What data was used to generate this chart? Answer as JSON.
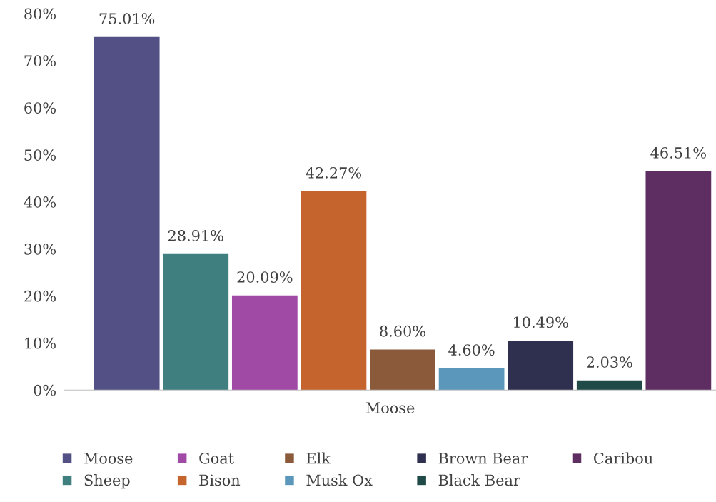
{
  "chart_data": {
    "type": "bar",
    "xlabel": "Moose",
    "categories": [
      null,
      null,
      null,
      null,
      null,
      null,
      null,
      null,
      null
    ],
    "series": [
      {
        "name": "Moose",
        "color": "#525084",
        "values": [
          75.01,
          null,
          null,
          null,
          null,
          null,
          null,
          null,
          null
        ],
        "value_labels": [
          "75.01%",
          null,
          null,
          null,
          null,
          null,
          null,
          null,
          null
        ]
      },
      {
        "name": "Sheep",
        "color": "#3f7f7f",
        "values": [
          null,
          28.91,
          null,
          null,
          null,
          null,
          null,
          null,
          null
        ],
        "value_labels": [
          null,
          "28.91%",
          null,
          null,
          null,
          null,
          null,
          null,
          null
        ]
      },
      {
        "name": "Goat",
        "color": "#a04aa6",
        "values": [
          null,
          null,
          20.09,
          null,
          null,
          null,
          null,
          null,
          null
        ],
        "value_labels": [
          null,
          null,
          "20.09%",
          null,
          null,
          null,
          null,
          null,
          null
        ]
      },
      {
        "name": "Bison",
        "color": "#c5642c",
        "values": [
          null,
          null,
          null,
          42.27,
          null,
          null,
          null,
          null,
          null
        ],
        "value_labels": [
          null,
          null,
          null,
          "42.27%",
          null,
          null,
          null,
          null,
          null
        ]
      },
      {
        "name": "Elk",
        "color": "#8a5a3a",
        "values": [
          null,
          null,
          null,
          null,
          8.6,
          null,
          null,
          null,
          null
        ],
        "value_labels": [
          null,
          null,
          null,
          null,
          "8.60%",
          null,
          null,
          null,
          null
        ]
      },
      {
        "name": "Musk Ox",
        "color": "#5b97bb",
        "values": [
          null,
          null,
          null,
          null,
          null,
          4.6,
          null,
          null,
          null
        ],
        "value_labels": [
          null,
          null,
          null,
          null,
          null,
          "4.60%",
          null,
          null,
          null
        ]
      },
      {
        "name": "Brown Bear",
        "color": "#2f3050",
        "values": [
          null,
          null,
          null,
          null,
          null,
          null,
          10.49,
          null,
          null
        ],
        "value_labels": [
          null,
          null,
          null,
          null,
          null,
          null,
          "10.49%",
          null,
          null
        ]
      },
      {
        "name": "Black Bear",
        "color": "#1f4a48",
        "values": [
          null,
          null,
          null,
          null,
          null,
          null,
          null,
          2.03,
          null
        ],
        "value_labels": [
          null,
          null,
          null,
          null,
          null,
          null,
          null,
          "2.03%",
          null
        ]
      },
      {
        "name": "Caribou",
        "color": "#5e2d62",
        "values": [
          null,
          null,
          null,
          null,
          null,
          null,
          null,
          null,
          46.51
        ],
        "value_labels": [
          null,
          null,
          null,
          null,
          null,
          null,
          null,
          null,
          "46.51%"
        ]
      }
    ],
    "ylim": [
      0,
      80
    ],
    "yticks": [
      {
        "value": 0,
        "label": "0%"
      },
      {
        "value": 10,
        "label": "10%"
      },
      {
        "value": 20,
        "label": "20%"
      },
      {
        "value": 30,
        "label": "30%"
      },
      {
        "value": 40,
        "label": "40%"
      },
      {
        "value": 50,
        "label": "50%"
      },
      {
        "value": 60,
        "label": "60%"
      },
      {
        "value": 70,
        "label": "70%"
      },
      {
        "value": 80,
        "label": "80%"
      }
    ],
    "grid": false,
    "legend": "bottom"
  }
}
